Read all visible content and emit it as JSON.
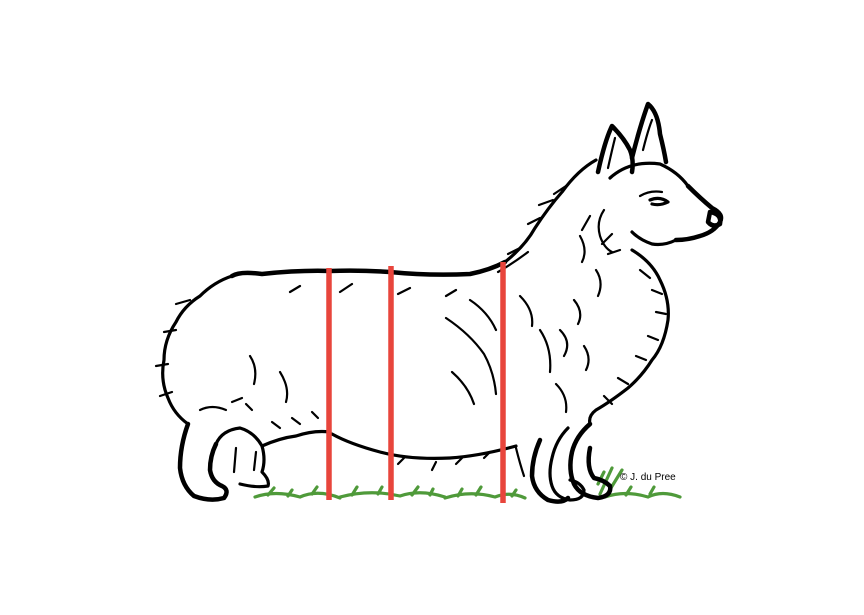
{
  "illustration": {
    "subject": "corgi-line-drawing",
    "credit": "© J. du Pree"
  },
  "colors": {
    "background": "#ffffff",
    "outline": "#000000",
    "measure_lines": "#e8453c",
    "grass": "#4f9a3a"
  },
  "measure_lines": {
    "count": 3
  }
}
